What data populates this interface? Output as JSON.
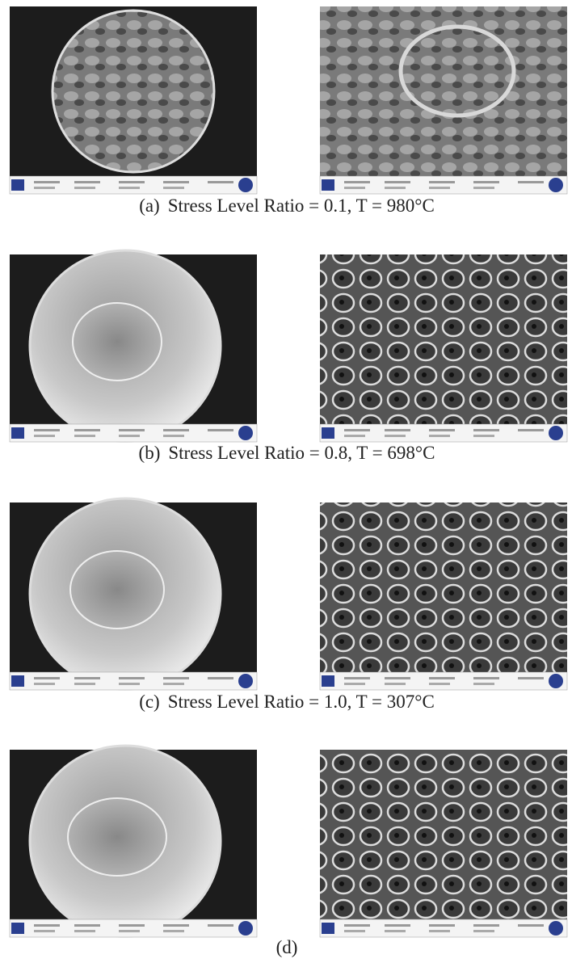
{
  "figure": {
    "panels": [
      {
        "label": "(a)",
        "caption": "Stress Level Ratio = 0.1, T = 980°C"
      },
      {
        "label": "(b)",
        "caption": "Stress Level Ratio = 0.8, T = 698°C"
      },
      {
        "label": "(c)",
        "caption": "Stress Level Ratio = 1.0, T = 307°C"
      },
      {
        "label": "(d)"
      }
    ]
  }
}
